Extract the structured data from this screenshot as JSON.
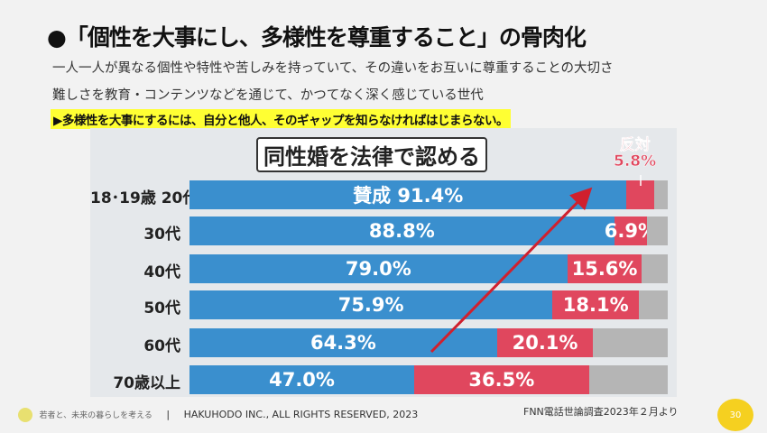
{
  "title": "●「個性を大事にし、多様性を尊重すること」の骨肉化",
  "subtitle_lines": [
    "一人一人が異なる個性や特性や苦しみを持っていて、その違いをお互いに尊重することの大切さ",
    "難しさを教育・コンテンツなどを通じて、かつてなく深く感じている世代"
  ],
  "highlight": "▶多様性を大事にするには、自分と他人、そのギャップを知らなければはじまらない。",
  "footer": {
    "logo_text": "若者と、未来の暮らしを考える",
    "copyright": "HAKUHODO INC., ALL RIGHTS RESERVED, 2023",
    "source": "FNN電話世論調査2023年２月より",
    "page": "30"
  },
  "chart_data": {
    "type": "bar",
    "stacked": true,
    "orientation": "horizontal",
    "title": "同性婚を法律で認める",
    "categories": [
      "18･19歳 20代",
      "30代",
      "40代",
      "50代",
      "60代",
      "70歳以上"
    ],
    "series": [
      {
        "name": "賛成",
        "values": [
          91.4,
          88.8,
          79.0,
          75.9,
          64.3,
          47.0
        ],
        "color": "#3a8fce"
      },
      {
        "name": "反対",
        "values": [
          5.8,
          6.9,
          15.6,
          18.1,
          20.1,
          36.5
        ],
        "color": "#e0475e"
      }
    ],
    "remainder_color": "#b5b5b5",
    "labels": [
      "賛成 91.4%",
      "88.8%",
      "79.0%",
      "75.9%",
      "64.3%",
      "47.0%"
    ],
    "opp_labels": [
      "",
      "6.9%",
      "15.6%",
      "18.1%",
      "20.1%",
      "36.5%"
    ],
    "opp_callout": [
      "反対",
      "5.8%"
    ],
    "annotation": "arrow-up-trend"
  }
}
